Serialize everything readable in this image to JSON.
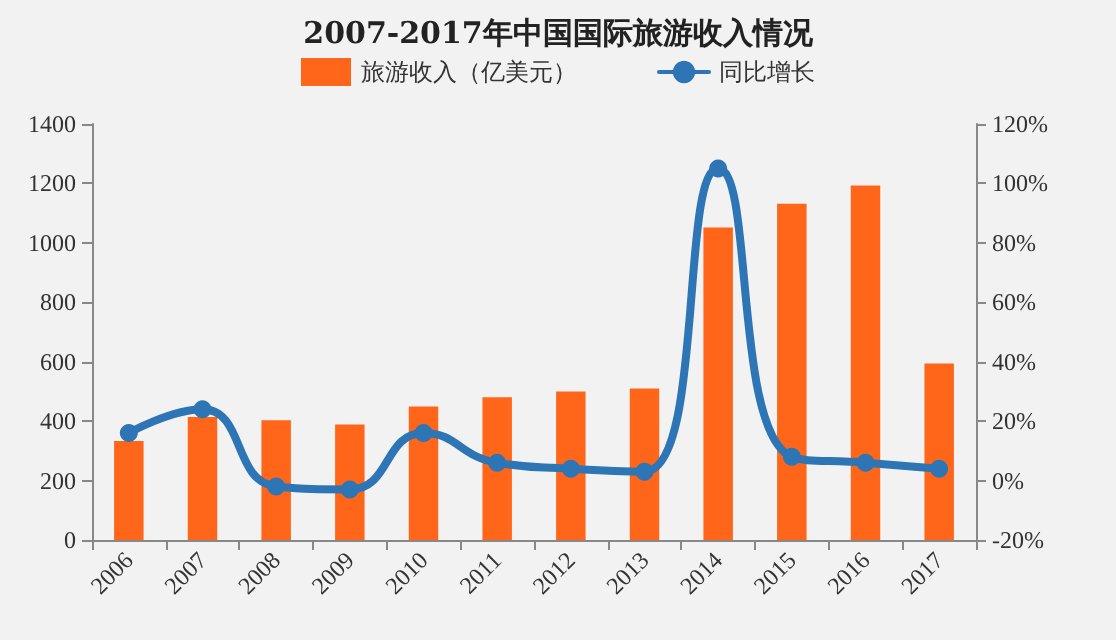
{
  "chart_data": {
    "type": "bar",
    "title": "2007-2017年中国国际旅游收入情况",
    "categories": [
      "2006",
      "2007",
      "2008",
      "2009",
      "2010",
      "2011",
      "2012",
      "2013",
      "2014",
      "2015",
      "2016",
      "2017"
    ],
    "series": [
      {
        "name": "旅游收入（亿美元）",
        "color": "#ff6619",
        "values": [
          333,
          414,
          403,
          389,
          449,
          480,
          500,
          510,
          1052,
          1132,
          1193,
          594
        ]
      },
      {
        "name": "同比增长",
        "type": "line",
        "axis": "y2",
        "color": "#2e75b6",
        "values": [
          16,
          24,
          -2,
          -3,
          16,
          6,
          4,
          3,
          105,
          8,
          6,
          4
        ]
      }
    ],
    "ylim": [
      0,
      1400
    ],
    "yticks": [
      0,
      200,
      400,
      600,
      800,
      1000,
      1200,
      1400
    ],
    "y2lim": [
      -20,
      120
    ],
    "y2ticks": [
      {
        "value": -20,
        "label": "-20%"
      },
      {
        "value": 0,
        "label": "0%"
      },
      {
        "value": 20,
        "label": "20%"
      },
      {
        "value": 40,
        "label": "40%"
      },
      {
        "value": 60,
        "label": "60%"
      },
      {
        "value": 80,
        "label": "80%"
      },
      {
        "value": 100,
        "label": "100%"
      },
      {
        "value": 120,
        "label": "120%"
      }
    ],
    "legend": "top",
    "grid": false,
    "marker": "circle"
  }
}
